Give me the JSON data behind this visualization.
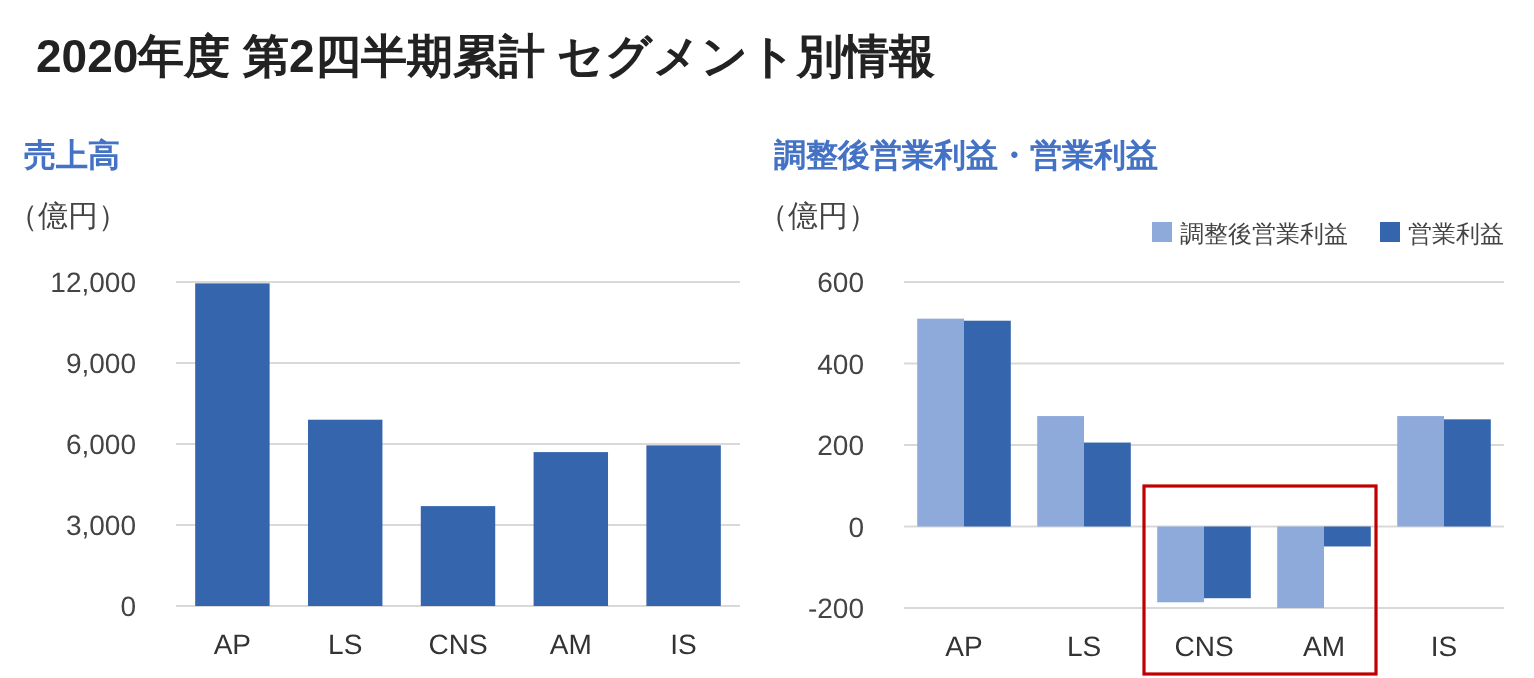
{
  "chart_data": [
    {
      "type": "bar",
      "title": "売上高",
      "ylabel": "（億円）",
      "annotations": [
        "2020年度 第2四半期累計 セグメント別情報"
      ],
      "categories": [
        "AP",
        "LS",
        "CNS",
        "AM",
        "IS"
      ],
      "series": [
        {
          "color": "#3566ad",
          "values": [
            11950,
            6900,
            3700,
            5700,
            5950
          ]
        }
      ],
      "ylim": [
        0,
        12000
      ],
      "yticks": [
        {
          "value": 0,
          "label": "0"
        },
        {
          "value": 3000,
          "label": "3,000"
        },
        {
          "value": 6000,
          "label": "6,000"
        },
        {
          "value": 9000,
          "label": "9,000"
        },
        {
          "value": 12000,
          "label": "12,000"
        }
      ],
      "grid": "y",
      "legend": false
    },
    {
      "type": "bar",
      "title": "調整後営業利益・営業利益",
      "ylabel": "（億円）",
      "categories": [
        "AP",
        "LS",
        "CNS",
        "AM",
        "IS"
      ],
      "series": [
        {
          "name": "調整後営業利益",
          "color": "#8eaadb",
          "values": [
            510,
            271,
            -186,
            -200,
            271
          ]
        },
        {
          "name": "営業利益",
          "color": "#3566ad",
          "values": [
            505,
            206,
            -176,
            -49,
            263
          ]
        }
      ],
      "ylim": [
        -200,
        600
      ],
      "yticks": [
        -200,
        0,
        200,
        400,
        600
      ],
      "grid": "y",
      "legend": "top right"
    }
  ]
}
